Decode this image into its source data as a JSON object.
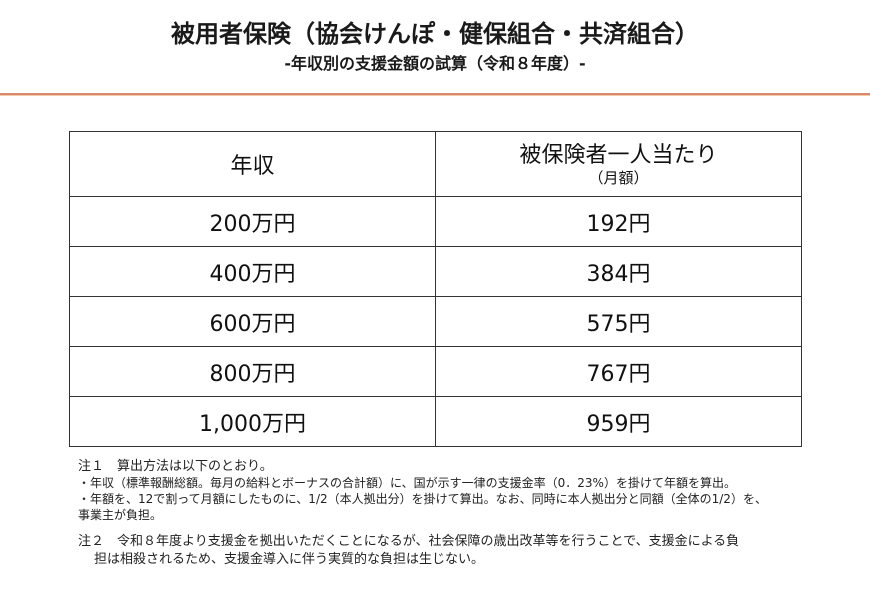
{
  "header": {
    "title": "被用者保険（協会けんぽ・健保組合・共済組合）",
    "subtitle": "-年収別の支援金額の試算（令和８年度）-",
    "divider_color": "#d9896a"
  },
  "table": {
    "columns": [
      {
        "label": "年収"
      },
      {
        "label": "被保険者一人当たり",
        "sublabel": "（月額）"
      }
    ],
    "rows": [
      {
        "income": "200万円",
        "monthly": "192円"
      },
      {
        "income": "400万円",
        "monthly": "384円"
      },
      {
        "income": "600万円",
        "monthly": "575円"
      },
      {
        "income": "800万円",
        "monthly": "767円"
      },
      {
        "income": "1,000万円",
        "monthly": "959円"
      }
    ]
  },
  "notes": {
    "note1": {
      "title": "注１　算出方法は以下のとおり。",
      "bullets": [
        "・年収（標準報酬総額。毎月の給料とボーナスの合計額）に、国が示す一律の支援金率（0．23%）を掛けて年額を算出。",
        "・年額を、12で割って月額にしたものに、1/2（本人拠出分）を掛けて算出。なお、同時に本人拠出分と同額（全体の1/2）を、"
      ],
      "continuation": "事業主が負担。"
    },
    "note2": {
      "line1": "注２　令和８年度より支援金を拠出いただくことになるが、社会保障の歳出改革等を行うことで、支援金による負",
      "line2": "担は相殺されるため、支援金導入に伴う実質的な負担は生じない。"
    }
  }
}
